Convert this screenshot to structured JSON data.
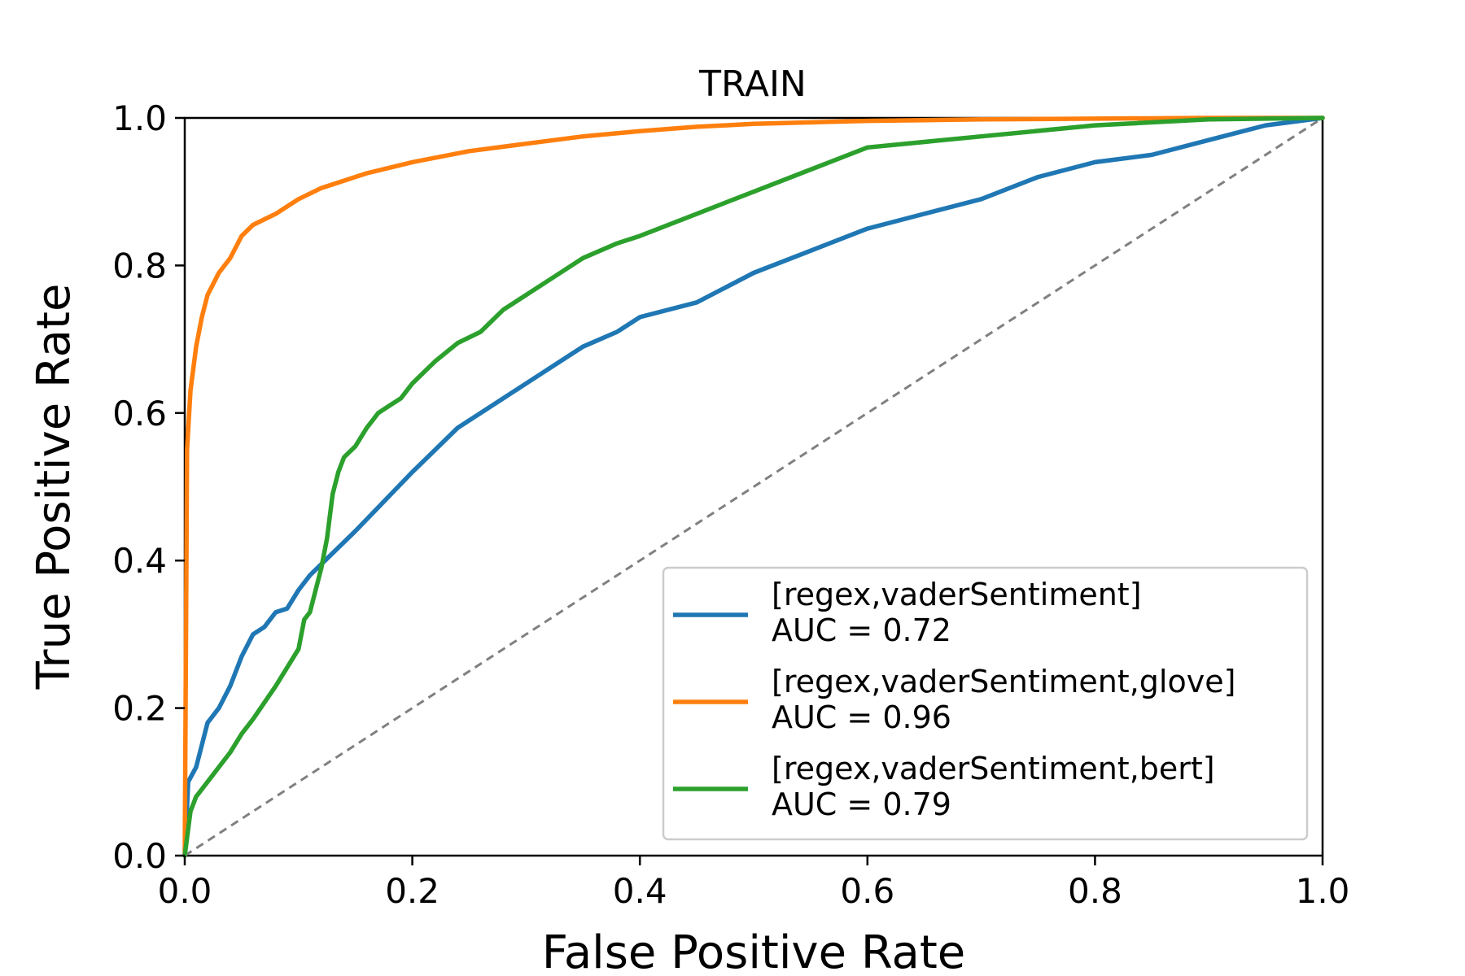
{
  "chart_data": {
    "type": "line",
    "title": "TRAIN",
    "xlabel": "False Positive Rate",
    "ylabel": "True Positive Rate",
    "xlim": [
      0.0,
      1.0
    ],
    "ylim": [
      0.0,
      1.0
    ],
    "xticks": [
      "0.0",
      "0.2",
      "0.4",
      "0.6",
      "0.8",
      "1.0"
    ],
    "yticks": [
      "0.0",
      "0.2",
      "0.4",
      "0.6",
      "0.8",
      "1.0"
    ],
    "grid": false,
    "legend_position": "lower-right",
    "reference_line": {
      "x": [
        0,
        1
      ],
      "y": [
        0,
        1
      ],
      "style": "dashed",
      "color": "#808080"
    },
    "series": [
      {
        "name": "[regex,vaderSentiment]",
        "auc_label": "AUC = 0.72",
        "color": "#1f77b4",
        "x": [
          0,
          0.003,
          0.01,
          0.015,
          0.02,
          0.03,
          0.04,
          0.05,
          0.06,
          0.07,
          0.08,
          0.09,
          0.1,
          0.11,
          0.13,
          0.15,
          0.2,
          0.22,
          0.24,
          0.26,
          0.28,
          0.3,
          0.33,
          0.35,
          0.38,
          0.4,
          0.45,
          0.5,
          0.55,
          0.6,
          0.65,
          0.7,
          0.75,
          0.8,
          0.85,
          0.9,
          0.95,
          1.0
        ],
        "y": [
          0,
          0.1,
          0.12,
          0.15,
          0.18,
          0.2,
          0.23,
          0.27,
          0.3,
          0.31,
          0.33,
          0.335,
          0.36,
          0.38,
          0.41,
          0.44,
          0.52,
          0.55,
          0.58,
          0.6,
          0.62,
          0.64,
          0.67,
          0.69,
          0.71,
          0.73,
          0.75,
          0.79,
          0.82,
          0.85,
          0.87,
          0.89,
          0.92,
          0.94,
          0.95,
          0.97,
          0.99,
          1.0
        ]
      },
      {
        "name": "[regex,vaderSentiment,glove]",
        "auc_label": "AUC = 0.96",
        "color": "#ff7f0e",
        "x": [
          0,
          0.002,
          0.005,
          0.01,
          0.015,
          0.02,
          0.03,
          0.04,
          0.05,
          0.06,
          0.08,
          0.1,
          0.12,
          0.14,
          0.16,
          0.2,
          0.25,
          0.3,
          0.35,
          0.4,
          0.45,
          0.5,
          0.6,
          0.7,
          0.8,
          0.9,
          1.0
        ],
        "y": [
          0,
          0.55,
          0.63,
          0.69,
          0.73,
          0.76,
          0.79,
          0.81,
          0.84,
          0.855,
          0.87,
          0.89,
          0.905,
          0.915,
          0.925,
          0.94,
          0.955,
          0.965,
          0.975,
          0.982,
          0.988,
          0.992,
          0.996,
          0.998,
          0.999,
          1.0,
          1.0
        ]
      },
      {
        "name": "[regex,vaderSentiment,bert]",
        "auc_label": "AUC = 0.79",
        "color": "#2ca02c",
        "x": [
          0,
          0.005,
          0.01,
          0.015,
          0.02,
          0.03,
          0.04,
          0.05,
          0.06,
          0.08,
          0.1,
          0.105,
          0.11,
          0.115,
          0.12,
          0.125,
          0.13,
          0.135,
          0.14,
          0.15,
          0.16,
          0.165,
          0.17,
          0.18,
          0.19,
          0.2,
          0.22,
          0.24,
          0.26,
          0.28,
          0.3,
          0.33,
          0.35,
          0.38,
          0.4,
          0.45,
          0.5,
          0.55,
          0.6,
          0.7,
          0.8,
          0.9,
          1.0
        ],
        "y": [
          0,
          0.06,
          0.08,
          0.09,
          0.1,
          0.12,
          0.14,
          0.165,
          0.185,
          0.23,
          0.28,
          0.32,
          0.33,
          0.36,
          0.39,
          0.43,
          0.49,
          0.52,
          0.54,
          0.555,
          0.58,
          0.59,
          0.6,
          0.61,
          0.62,
          0.64,
          0.67,
          0.695,
          0.71,
          0.74,
          0.76,
          0.79,
          0.81,
          0.83,
          0.84,
          0.87,
          0.9,
          0.93,
          0.96,
          0.975,
          0.99,
          0.998,
          1.0
        ]
      }
    ]
  }
}
